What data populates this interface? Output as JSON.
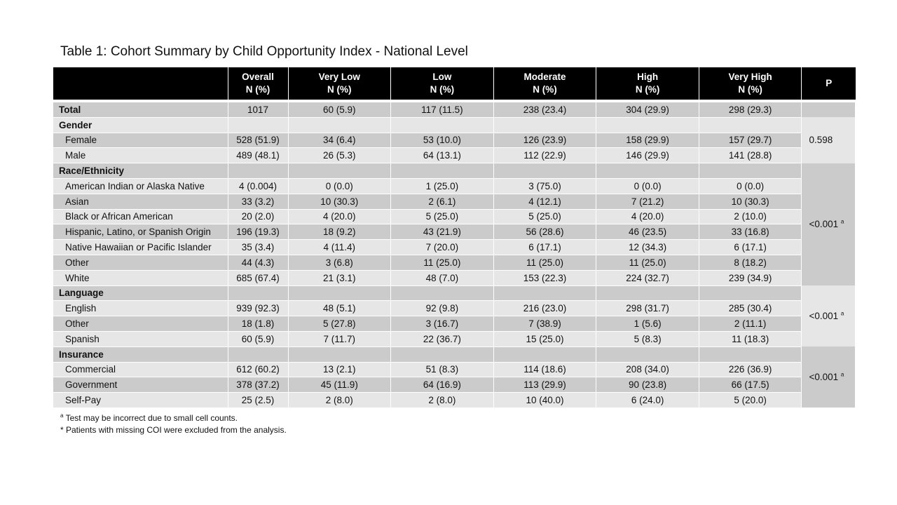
{
  "title": "Table 1: Cohort Summary by Child Opportunity Index - National Level",
  "header": {
    "overall": "Overall",
    "very_low": "Very Low",
    "low": "Low",
    "moderate": "Moderate",
    "high": "High",
    "very_high": "Very High",
    "unit": "N (%)",
    "p": "P"
  },
  "total": {
    "label": "Total",
    "values": [
      "1017",
      "60 (5.9)",
      "117 (11.5)",
      "238 (23.4)",
      "304 (29.9)",
      "298 (29.3)"
    ]
  },
  "gender": {
    "label": "Gender",
    "p": "0.598",
    "rows": [
      {
        "label": "Female",
        "values": [
          "528 (51.9)",
          "34 (6.4)",
          "53 (10.0)",
          "126 (23.9)",
          "158 (29.9)",
          "157 (29.7)"
        ]
      },
      {
        "label": "Male",
        "values": [
          "489 (48.1)",
          "26 (5.3)",
          "64 (13.1)",
          "112 (22.9)",
          "146 (29.9)",
          "141 (28.8)"
        ]
      }
    ]
  },
  "race": {
    "label": "Race/Ethnicity",
    "p": "<0.001",
    "p_sup": "a",
    "rows": [
      {
        "label": "American Indian or Alaska Native",
        "values": [
          "4 (0.004)",
          "0 (0.0)",
          "1 (25.0)",
          "3 (75.0)",
          "0 (0.0)",
          "0 (0.0)"
        ]
      },
      {
        "label": "Asian",
        "values": [
          "33 (3.2)",
          "10 (30.3)",
          "2 (6.1)",
          "4 (12.1)",
          "7 (21.2)",
          "10 (30.3)"
        ]
      },
      {
        "label": "Black or African American",
        "values": [
          "20 (2.0)",
          "4 (20.0)",
          "5 (25.0)",
          "5 (25.0)",
          "4 (20.0)",
          "2 (10.0)"
        ]
      },
      {
        "label": "Hispanic, Latino, or Spanish Origin",
        "values": [
          "196 (19.3)",
          "18 (9.2)",
          "43 (21.9)",
          "56 (28.6)",
          "46 (23.5)",
          "33 (16.8)"
        ]
      },
      {
        "label": "Native Hawaiian or Pacific Islander",
        "values": [
          "35 (3.4)",
          "4 (11.4)",
          "7 (20.0)",
          "6 (17.1)",
          "12 (34.3)",
          "6 (17.1)"
        ]
      },
      {
        "label": "Other",
        "values": [
          "44 (4.3)",
          "3 (6.8)",
          "11 (25.0)",
          "11 (25.0)",
          "11 (25.0)",
          "8 (18.2)"
        ]
      },
      {
        "label": "White",
        "values": [
          "685 (67.4)",
          "21 (3.1)",
          "48 (7.0)",
          "153 (22.3)",
          "224 (32.7)",
          "239 (34.9)"
        ]
      }
    ]
  },
  "language": {
    "label": "Language",
    "p": "<0.001",
    "p_sup": "a",
    "rows": [
      {
        "label": "English",
        "values": [
          "939 (92.3)",
          "48 (5.1)",
          "92 (9.8)",
          "216 (23.0)",
          "298 (31.7)",
          "285 (30.4)"
        ]
      },
      {
        "label": "Other",
        "values": [
          "18 (1.8)",
          "5 (27.8)",
          "3 (16.7)",
          "7 (38.9)",
          "1 (5.6)",
          "2 (11.1)"
        ]
      },
      {
        "label": "Spanish",
        "values": [
          "60 (5.9)",
          "7 (11.7)",
          "22 (36.7)",
          "15 (25.0)",
          "5 (8.3)",
          "11 (18.3)"
        ]
      }
    ]
  },
  "insurance": {
    "label": "Insurance",
    "p": "<0.001",
    "p_sup": "a",
    "rows": [
      {
        "label": "Commercial",
        "values": [
          "612 (60.2)",
          "13 (2.1)",
          "51 (8.3)",
          "114 (18.6)",
          "208 (34.0)",
          "226 (36.9)"
        ]
      },
      {
        "label": "Government",
        "values": [
          "378 (37.2)",
          "45 (11.9)",
          "64 (16.9)",
          "113 (29.9)",
          "90 (23.8)",
          "66 (17.5)"
        ]
      },
      {
        "label": "Self-Pay",
        "values": [
          "25 (2.5)",
          "2 (8.0)",
          "2 (8.0)",
          "10 (40.0)",
          "6 (24.0)",
          "5 (20.0)"
        ]
      }
    ]
  },
  "footnotes": {
    "a_mark": "a",
    "a_text": "Test may be incorrect due to small cell counts.",
    "b_text": "* Patients with missing COI were excluded from the analysis."
  }
}
